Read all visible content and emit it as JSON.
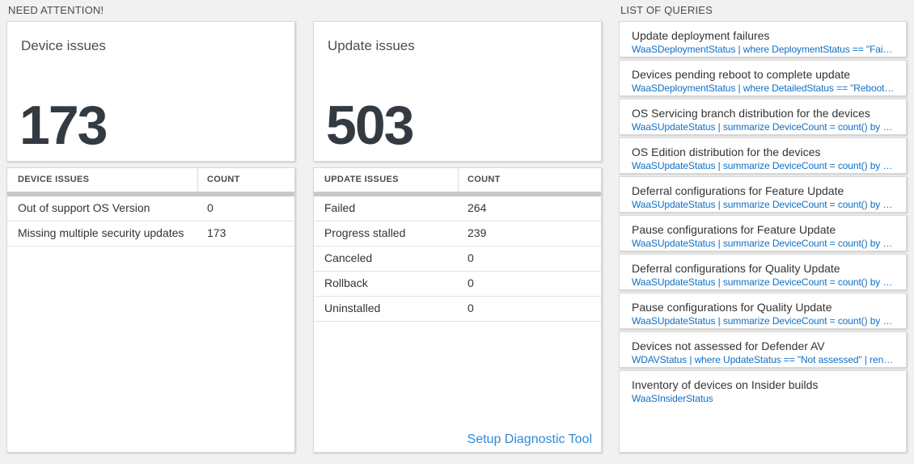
{
  "need_attention": {
    "title": "NEED ATTENTION!",
    "device": {
      "card_title": "Device issues",
      "big_number": "173",
      "table": {
        "headers": [
          "DEVICE ISSUES",
          "COUNT"
        ],
        "rows": [
          {
            "label": "Out of support OS Version",
            "count": "0"
          },
          {
            "label": "Missing multiple security updates",
            "count": "173"
          }
        ]
      }
    },
    "update": {
      "card_title": "Update issues",
      "big_number": "503",
      "table": {
        "headers": [
          "UPDATE ISSUES",
          "COUNT"
        ],
        "rows": [
          {
            "label": "Failed",
            "count": "264"
          },
          {
            "label": "Progress stalled",
            "count": "239"
          },
          {
            "label": "Canceled",
            "count": "0"
          },
          {
            "label": "Rollback",
            "count": "0"
          },
          {
            "label": "Uninstalled",
            "count": "0"
          }
        ]
      },
      "footer_link": "Setup Diagnostic Tool"
    }
  },
  "queries": {
    "title": "LIST OF QUERIES",
    "items": [
      {
        "title": "Update deployment failures",
        "query": "WaaSDeploymentStatus | where DeploymentStatus == \"Failed\" |..."
      },
      {
        "title": "Devices pending reboot to complete update",
        "query": "WaaSDeploymentStatus | where DetailedStatus == \"Reboot pend..."
      },
      {
        "title": "OS Servicing branch distribution for the devices",
        "query": "WaaSUpdateStatus | summarize DeviceCount = count() by OSSer..."
      },
      {
        "title": "OS Edition distribution for the devices",
        "query": "WaaSUpdateStatus | summarize DeviceCount = count() by OSEdit..."
      },
      {
        "title": "Deferral configurations for Feature Update",
        "query": "WaaSUpdateStatus | summarize DeviceCount = count() by Featur..."
      },
      {
        "title": "Pause configurations for Feature Update",
        "query": "WaaSUpdateStatus | summarize DeviceCount = count() by Featur..."
      },
      {
        "title": "Deferral configurations for Quality Update",
        "query": "WaaSUpdateStatus | summarize DeviceCount = count() by Qualit..."
      },
      {
        "title": "Pause configurations for Quality Update",
        "query": "WaaSUpdateStatus | summarize DeviceCount = count() by Qualit..."
      },
      {
        "title": "Devices not assessed for Defender AV",
        "query": "WDAVStatus | where UpdateStatus == \"Not assessed\" | render ta..."
      },
      {
        "title": "Inventory of devices on Insider builds",
        "query": "WaaSInsiderStatus"
      }
    ]
  },
  "colors": {
    "background": "#f1f1f1",
    "accent_link": "#0f6fc5",
    "diag_link": "#2e8ad8",
    "big_number": "#333a42",
    "scrollbar": "#c8c8c8"
  }
}
